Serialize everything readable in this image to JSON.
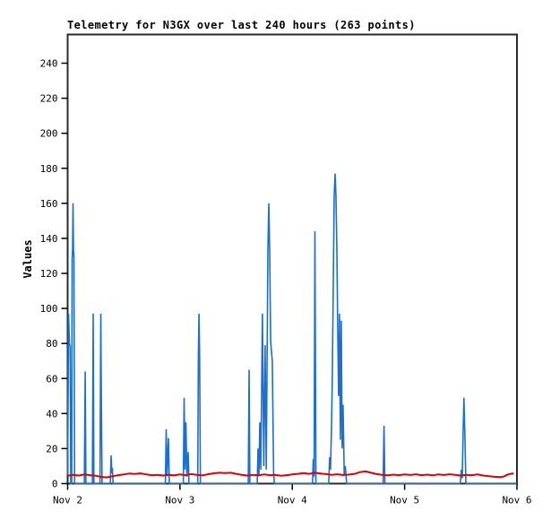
{
  "page": {
    "background": "#ffffff"
  },
  "chart_data": {
    "type": "line",
    "title": "Telemetry for N3GX over last 240 hours (263 points)",
    "ylabel": "Values",
    "xlabel": "",
    "grid": false,
    "legend": null,
    "xlim_days": [
      2,
      6
    ],
    "ylim": [
      0,
      240
    ],
    "yticks": [
      0,
      20,
      40,
      60,
      80,
      100,
      120,
      140,
      160,
      180,
      200,
      220,
      240
    ],
    "xticks": [
      {
        "day": 2,
        "label": "Nov 2"
      },
      {
        "day": 3,
        "label": "Nov 3"
      },
      {
        "day": 4,
        "label": "Nov 4"
      },
      {
        "day": 5,
        "label": "Nov 5"
      },
      {
        "day": 6,
        "label": "Nov 6"
      }
    ],
    "colors": {
      "telemetry": "#1b6fd0",
      "baseline": "#e00000",
      "border": "#2a2a2a"
    },
    "series": [
      {
        "name": "telemetry_values",
        "color": "#1b6fd0",
        "width": 1.6,
        "points": [
          [
            2.0,
            5
          ],
          [
            2.008,
            97
          ],
          [
            2.016,
            80
          ],
          [
            2.022,
            78
          ],
          [
            2.028,
            0
          ],
          [
            2.036,
            0
          ],
          [
            2.04,
            128
          ],
          [
            2.044,
            133
          ],
          [
            2.048,
            160
          ],
          [
            2.052,
            133
          ],
          [
            2.056,
            130
          ],
          [
            2.062,
            0
          ],
          [
            2.148,
            0
          ],
          [
            2.156,
            64
          ],
          [
            2.163,
            0
          ],
          [
            2.22,
            0
          ],
          [
            2.227,
            97
          ],
          [
            2.234,
            0
          ],
          [
            2.288,
            0
          ],
          [
            2.295,
            97
          ],
          [
            2.3,
            50
          ],
          [
            2.306,
            0
          ],
          [
            2.38,
            0
          ],
          [
            2.387,
            16
          ],
          [
            2.393,
            6
          ],
          [
            2.398,
            9
          ],
          [
            2.404,
            0
          ],
          [
            2.87,
            0
          ],
          [
            2.877,
            31
          ],
          [
            2.885,
            5
          ],
          [
            2.897,
            26
          ],
          [
            2.905,
            0
          ],
          [
            3.03,
            0
          ],
          [
            3.037,
            49
          ],
          [
            3.045,
            8
          ],
          [
            3.053,
            35
          ],
          [
            3.062,
            4
          ],
          [
            3.073,
            18
          ],
          [
            3.08,
            0
          ],
          [
            3.158,
            0
          ],
          [
            3.164,
            73
          ],
          [
            3.169,
            97
          ],
          [
            3.175,
            73
          ],
          [
            3.182,
            0
          ],
          [
            3.608,
            0
          ],
          [
            3.615,
            65
          ],
          [
            3.622,
            0
          ],
          [
            3.688,
            0
          ],
          [
            3.695,
            20
          ],
          [
            3.703,
            5
          ],
          [
            3.711,
            35
          ],
          [
            3.72,
            8
          ],
          [
            3.734,
            97
          ],
          [
            3.746,
            10
          ],
          [
            3.758,
            79
          ],
          [
            3.768,
            8
          ],
          [
            3.783,
            133
          ],
          [
            3.791,
            160
          ],
          [
            3.799,
            133
          ],
          [
            3.807,
            81
          ],
          [
            3.822,
            70
          ],
          [
            3.834,
            6
          ],
          [
            3.841,
            0
          ],
          [
            4.18,
            0
          ],
          [
            4.186,
            14
          ],
          [
            4.194,
            4
          ],
          [
            4.201,
            144
          ],
          [
            4.21,
            0
          ],
          [
            4.324,
            0
          ],
          [
            4.332,
            15
          ],
          [
            4.34,
            8
          ],
          [
            4.348,
            30
          ],
          [
            4.356,
            60
          ],
          [
            4.364,
            110
          ],
          [
            4.373,
            164
          ],
          [
            4.381,
            177
          ],
          [
            4.389,
            164
          ],
          [
            4.397,
            133
          ],
          [
            4.404,
            90
          ],
          [
            4.412,
            50
          ],
          [
            4.42,
            97
          ],
          [
            4.428,
            25
          ],
          [
            4.436,
            93
          ],
          [
            4.444,
            20
          ],
          [
            4.452,
            45
          ],
          [
            4.462,
            5
          ],
          [
            4.472,
            10
          ],
          [
            4.484,
            0
          ],
          [
            4.808,
            0
          ],
          [
            4.816,
            33
          ],
          [
            4.824,
            0
          ],
          [
            5.495,
            0
          ],
          [
            5.505,
            8
          ],
          [
            5.513,
            3
          ],
          [
            5.521,
            29
          ],
          [
            5.528,
            49
          ],
          [
            5.537,
            25
          ],
          [
            5.545,
            0
          ],
          [
            6.0,
            0
          ]
        ]
      },
      {
        "name": "baseline",
        "color": "#e00000",
        "width": 2,
        "points": [
          [
            2.0,
            4.5
          ],
          [
            2.05,
            5.0
          ],
          [
            2.1,
            4.6
          ],
          [
            2.15,
            5.2
          ],
          [
            2.2,
            4.8
          ],
          [
            2.25,
            4.5
          ],
          [
            2.3,
            3.8
          ],
          [
            2.35,
            3.6
          ],
          [
            2.4,
            4.2
          ],
          [
            2.45,
            4.8
          ],
          [
            2.5,
            5.2
          ],
          [
            2.55,
            5.8
          ],
          [
            2.6,
            5.5
          ],
          [
            2.65,
            5.9
          ],
          [
            2.7,
            5.2
          ],
          [
            2.75,
            4.8
          ],
          [
            2.8,
            5.0
          ],
          [
            2.85,
            4.6
          ],
          [
            2.9,
            5.0
          ],
          [
            2.95,
            4.7
          ],
          [
            3.0,
            5.2
          ],
          [
            3.05,
            4.8
          ],
          [
            3.1,
            5.4
          ],
          [
            3.15,
            5.0
          ],
          [
            3.2,
            4.7
          ],
          [
            3.25,
            5.3
          ],
          [
            3.3,
            5.9
          ],
          [
            3.35,
            6.2
          ],
          [
            3.4,
            6.0
          ],
          [
            3.45,
            6.2
          ],
          [
            3.5,
            5.6
          ],
          [
            3.55,
            5.0
          ],
          [
            3.6,
            4.6
          ],
          [
            3.65,
            5.0
          ],
          [
            3.7,
            4.7
          ],
          [
            3.75,
            5.2
          ],
          [
            3.8,
            4.8
          ],
          [
            3.85,
            5.0
          ],
          [
            3.9,
            4.5
          ],
          [
            3.95,
            4.8
          ],
          [
            4.0,
            5.2
          ],
          [
            4.05,
            5.6
          ],
          [
            4.1,
            6.0
          ],
          [
            4.15,
            5.6
          ],
          [
            4.2,
            6.2
          ],
          [
            4.25,
            5.8
          ],
          [
            4.3,
            5.4
          ],
          [
            4.35,
            5.0
          ],
          [
            4.4,
            5.3
          ],
          [
            4.45,
            4.9
          ],
          [
            4.5,
            5.1
          ],
          [
            4.55,
            5.5
          ],
          [
            4.6,
            6.5
          ],
          [
            4.65,
            7.0
          ],
          [
            4.7,
            6.2
          ],
          [
            4.75,
            5.4
          ],
          [
            4.8,
            5.0
          ],
          [
            4.85,
            4.7
          ],
          [
            4.9,
            5.1
          ],
          [
            4.95,
            4.8
          ],
          [
            5.0,
            5.2
          ],
          [
            5.05,
            4.9
          ],
          [
            5.1,
            5.3
          ],
          [
            5.15,
            4.8
          ],
          [
            5.2,
            5.1
          ],
          [
            5.25,
            4.7
          ],
          [
            5.3,
            5.2
          ],
          [
            5.35,
            4.9
          ],
          [
            5.4,
            5.3
          ],
          [
            5.45,
            5.0
          ],
          [
            5.5,
            4.6
          ],
          [
            5.55,
            5.0
          ],
          [
            5.6,
            4.8
          ],
          [
            5.65,
            5.2
          ],
          [
            5.7,
            4.6
          ],
          [
            5.75,
            4.2
          ],
          [
            5.8,
            3.9
          ],
          [
            5.85,
            3.7
          ],
          [
            5.88,
            4.0
          ],
          [
            5.92,
            5.2
          ],
          [
            5.96,
            5.8
          ],
          [
            5.97,
            5.6
          ]
        ]
      }
    ]
  }
}
